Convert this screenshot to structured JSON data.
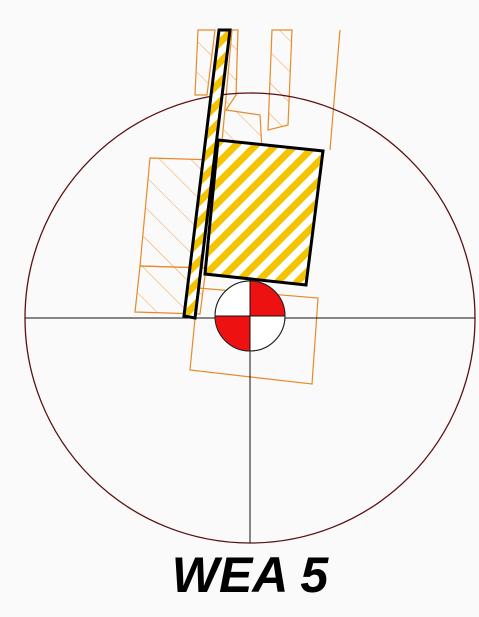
{
  "label": "WEA 5"
}
